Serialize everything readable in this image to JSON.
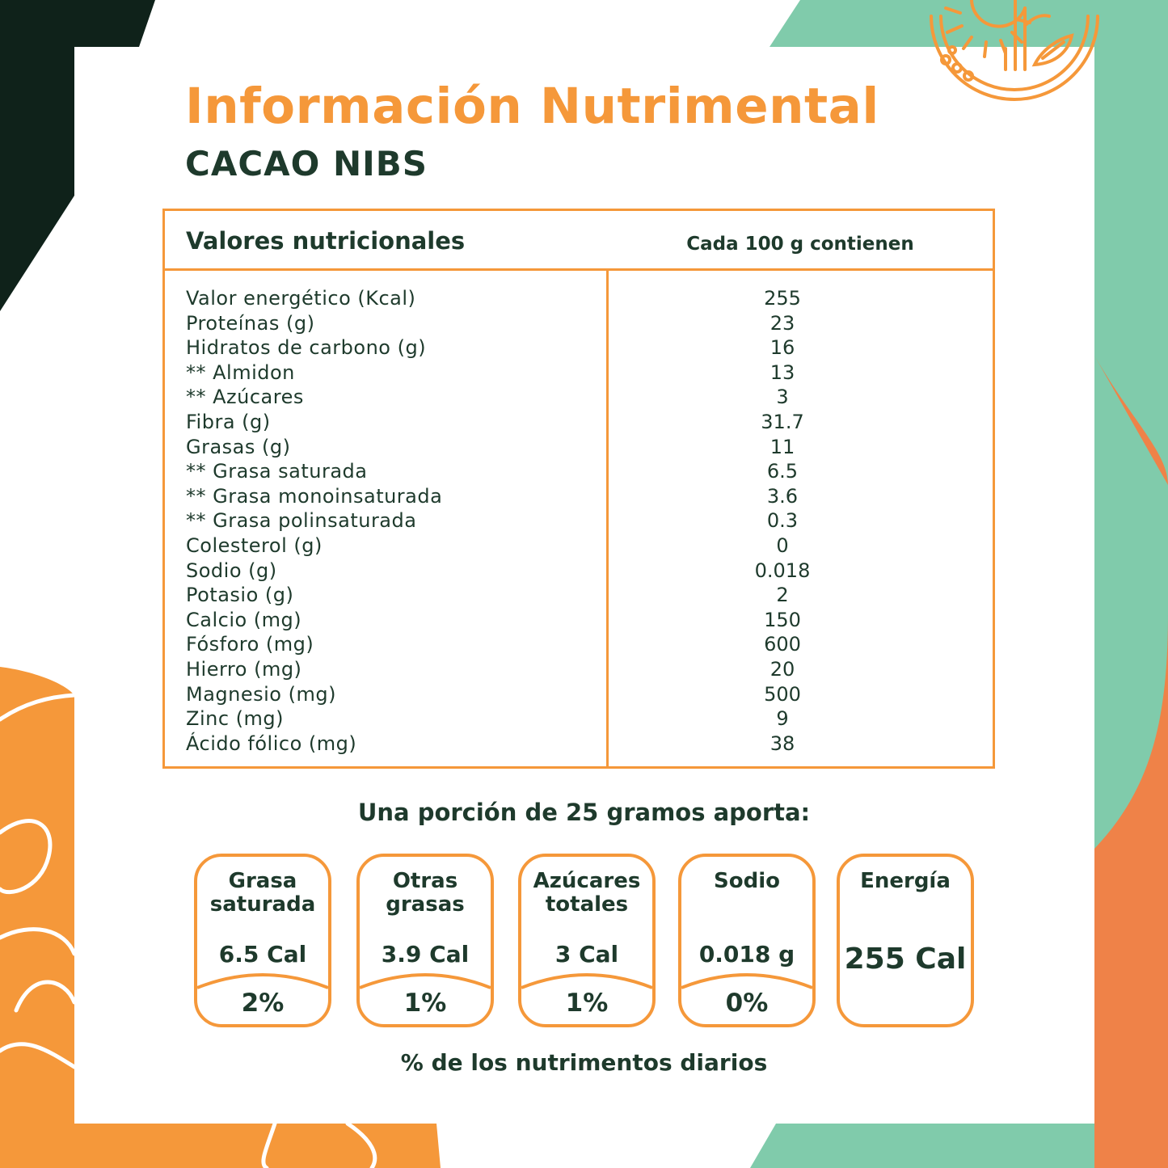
{
  "header": {
    "title": "Información Nutrimental",
    "product": "CACAO NIBS"
  },
  "table": {
    "header_left": "Valores nutricionales",
    "header_right": "Cada 100 g contienen",
    "rows": [
      {
        "label": "Valor energético (Kcal)",
        "value": "255"
      },
      {
        "label": "Proteínas (g)",
        "value": "23"
      },
      {
        "label": "Hidratos de carbono (g)",
        "value": "16"
      },
      {
        "label": "** Almidon",
        "value": "13"
      },
      {
        "label": "** Azúcares",
        "value": "3"
      },
      {
        "label": "Fibra (g)",
        "value": "31.7"
      },
      {
        "label": "Grasas (g)",
        "value": "11"
      },
      {
        "label": "** Grasa saturada",
        "value": "6.5"
      },
      {
        "label": "** Grasa monoinsaturada",
        "value": "3.6"
      },
      {
        "label": "** Grasa polinsaturada",
        "value": "0.3"
      },
      {
        "label": "Colesterol (g)",
        "value": "0"
      },
      {
        "label": "Sodio (g)",
        "value": "0.018"
      },
      {
        "label": "Potasio (g)",
        "value": "2"
      },
      {
        "label": "Calcio (mg)",
        "value": "150"
      },
      {
        "label": "Fósforo (mg)",
        "value": "600"
      },
      {
        "label": "Hierro (mg)",
        "value": "20"
      },
      {
        "label": "Magnesio (mg)",
        "value": "500"
      },
      {
        "label": "Zinc (mg)",
        "value": "9"
      },
      {
        "label": "Ácido fólico (mg)",
        "value": "38"
      }
    ]
  },
  "portion": {
    "heading": "Una porción de 25 gramos aporta:",
    "badges": [
      {
        "title": "Grasa\nsaturada",
        "value": "6.5 Cal",
        "percent": "2%"
      },
      {
        "title": "Otras\ngrasas",
        "value": "3.9 Cal",
        "percent": "1%"
      },
      {
        "title": "Azúcares\ntotales",
        "value": "3 Cal",
        "percent": "1%"
      },
      {
        "title": "Sodio",
        "value": "0.018 g",
        "percent": "0%"
      },
      {
        "title": "Energía",
        "value": "255 Cal"
      }
    ],
    "footnote": "% de los nutrimentos diarios"
  },
  "colors": {
    "accent_orange": "#f5983a",
    "dark_green": "#1e3a2c",
    "mint": "#80cbab",
    "coral": "#ef8248",
    "corner_dark": "#0f221a"
  },
  "icons": [
    "sun-plant-logo-icon"
  ]
}
